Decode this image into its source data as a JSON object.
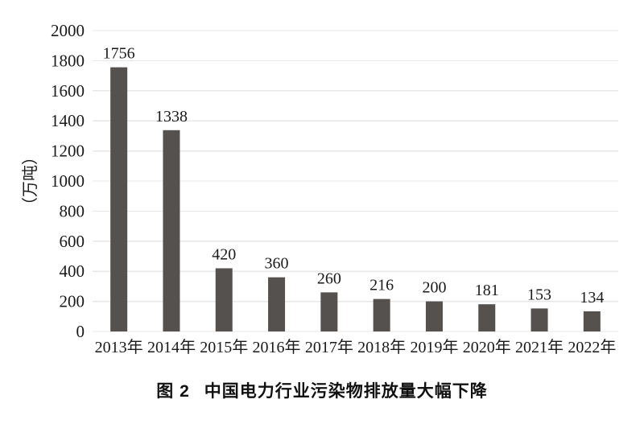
{
  "chart_data": {
    "type": "bar",
    "categories": [
      "2013年",
      "2014年",
      "2015年",
      "2016年",
      "2017年",
      "2018年",
      "2019年",
      "2020年",
      "2021年",
      "2022年"
    ],
    "values": [
      1756,
      1338,
      420,
      360,
      260,
      216,
      200,
      181,
      153,
      134
    ],
    "value_labels": [
      "1756",
      "1338",
      "420",
      "360",
      "260",
      "216",
      "200",
      "181",
      "153",
      "134"
    ],
    "title": "图 2　中国电力行业污染物排放量大幅下降",
    "xlabel": "",
    "ylabel": "（万吨）",
    "ylim": [
      0,
      2000
    ],
    "ytick_step": 200,
    "yticks": [
      0,
      200,
      400,
      600,
      800,
      1000,
      1200,
      1400,
      1600,
      1800,
      2000
    ],
    "grid": "horizontal",
    "legend_position": "none",
    "bar_color": "#55514e",
    "grid_color": "#e7e7e7",
    "text_color": "#1a1a1a"
  },
  "caption": {
    "figure_label": "图 2",
    "title": "中国电力行业污染物排放量大幅下降"
  }
}
